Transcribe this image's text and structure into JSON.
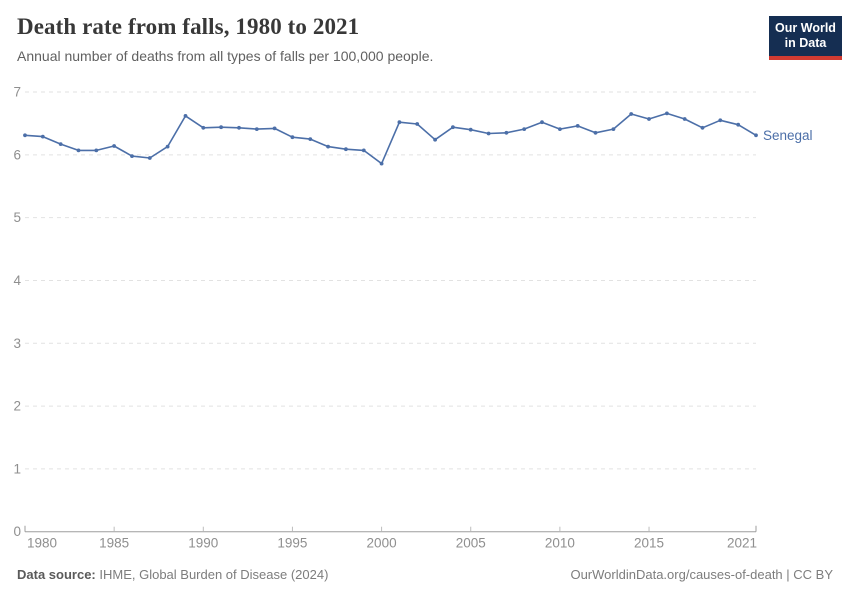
{
  "header": {
    "title": "Death rate from falls, 1980 to 2021",
    "subtitle": "Annual number of deaths from all types of falls per 100,000 people."
  },
  "logo": {
    "line1": "Our World",
    "line2": "in Data",
    "bg_color": "#152E52",
    "accent_color": "#D13B32"
  },
  "chart_data": {
    "type": "line",
    "title": "Death rate from falls, 1980 to 2021",
    "ylabel": "",
    "xlabel": "",
    "x": [
      1980,
      1981,
      1982,
      1983,
      1984,
      1985,
      1986,
      1987,
      1988,
      1989,
      1990,
      1991,
      1992,
      1993,
      1994,
      1995,
      1996,
      1997,
      1998,
      1999,
      2000,
      2001,
      2002,
      2003,
      2004,
      2005,
      2006,
      2007,
      2008,
      2009,
      2010,
      2011,
      2012,
      2013,
      2014,
      2015,
      2016,
      2017,
      2018,
      2019,
      2020,
      2021
    ],
    "series": [
      {
        "name": "Senegal",
        "color": "#4C6FA8",
        "values": [
          6.31,
          6.29,
          6.17,
          6.07,
          6.07,
          6.14,
          5.98,
          5.95,
          6.13,
          6.62,
          6.43,
          6.44,
          6.43,
          6.41,
          6.42,
          6.28,
          6.25,
          6.13,
          6.09,
          6.07,
          5.86,
          6.52,
          6.49,
          6.24,
          6.44,
          6.4,
          6.34,
          6.35,
          6.41,
          6.52,
          6.41,
          6.46,
          6.35,
          6.41,
          6.65,
          6.57,
          6.66,
          6.57,
          6.43,
          6.55,
          6.48,
          6.31
        ]
      }
    ],
    "ylim": [
      0,
      7
    ],
    "yticks": [
      0,
      1,
      2,
      3,
      4,
      5,
      6,
      7
    ],
    "xticks": [
      1980,
      1985,
      1990,
      1995,
      2000,
      2005,
      2010,
      2015,
      2021
    ],
    "grid": "horizontal-dashed",
    "legend": "line-end-label",
    "colors": {
      "grid": "#e2e2e2",
      "axis": "#9e9e9e",
      "tick_labels": "#8f8f8f"
    }
  },
  "footer": {
    "datasource_label": "Data source:",
    "datasource_value": " IHME, Global Burden of Disease (2024)",
    "credit": "OurWorldinData.org/causes-of-death | CC BY"
  }
}
